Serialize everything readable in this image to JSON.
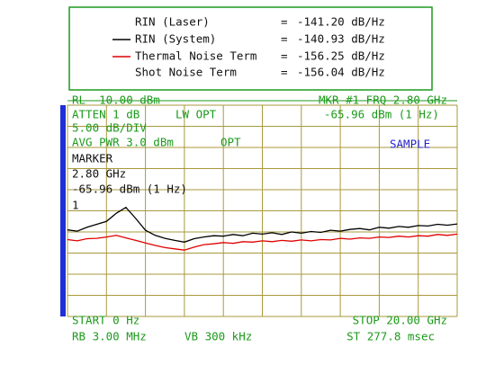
{
  "chart_data": {
    "type": "line",
    "other_terms": [
      {
        "name": "RIN (Laser)",
        "rin": "-141.20 dB/Hz"
      },
      {
        "name": "Shot Noise Term",
        "rin": "-156.04 dB/Hz"
      }
    ],
    "annotations": {
      "rl": "RL -10.00 dBm",
      "mkr": "MKR #1 FRQ 2.80 GHz",
      "atten": "ATTEN 1 dB",
      "lw_opt": "LW OPT",
      "mkr_amp": "-65.96 dBm (1 Hz)",
      "scale": "5.00 dB/DIV",
      "avg": "AVG PWR 3.0 dBm",
      "opt": "OPT",
      "detector": "SAMPLE",
      "marker_title": "MARKER",
      "marker_freq": "2.80 GHz",
      "marker_amp": "-65.96 dBm (1 Hz)",
      "marker_num": "1",
      "start": "START 0 Hz",
      "stop": "STOP 20.00 GHz",
      "rb": "RB 3.00 MHz",
      "vb": "VB 300 kHz",
      "st": "ST 277.8 msec"
    },
    "x": [
      0,
      0.5,
      1,
      1.5,
      2,
      2.5,
      3,
      3.5,
      4,
      4.5,
      5,
      5.5,
      6,
      6.5,
      7,
      7.5,
      8,
      8.5,
      9,
      9.5,
      10,
      10.5,
      11,
      11.5,
      12,
      12.5,
      13,
      13.5,
      14,
      14.5,
      15,
      15.5,
      16,
      16.5,
      17,
      17.5,
      18,
      18.5,
      19,
      19.5,
      20
    ],
    "series": [
      {
        "name": "RIN (System)",
        "rin": "-140.93 dB/Hz",
        "color": "#000000",
        "values": [
          -39.5,
          -39.8,
          -38.9,
          -38.2,
          -37.5,
          -35.6,
          -34.2,
          -36.8,
          -39.6,
          -40.8,
          -41.5,
          -42.0,
          -42.4,
          -41.6,
          -41.2,
          -40.9,
          -41.0,
          -40.6,
          -40.9,
          -40.3,
          -40.5,
          -40.2,
          -40.6,
          -40.0,
          -40.3,
          -39.9,
          -40.1,
          -39.6,
          -39.8,
          -39.4,
          -39.2,
          -39.5,
          -38.9,
          -39.1,
          -38.7,
          -38.9,
          -38.5,
          -38.6,
          -38.2,
          -38.4,
          -38.1
        ]
      },
      {
        "name": "Thermal Noise Term",
        "rin": "-156.25 dB/Hz",
        "color": "#e00000",
        "values": [
          -41.8,
          -42.1,
          -41.6,
          -41.5,
          -41.2,
          -40.8,
          -41.4,
          -42.0,
          -42.6,
          -43.2,
          -43.7,
          -44.0,
          -44.3,
          -43.6,
          -43.0,
          -42.8,
          -42.5,
          -42.7,
          -42.3,
          -42.4,
          -42.1,
          -42.3,
          -42.0,
          -42.2,
          -41.9,
          -42.1,
          -41.8,
          -41.9,
          -41.5,
          -41.7,
          -41.4,
          -41.5,
          -41.2,
          -41.3,
          -41.0,
          -41.2,
          -40.9,
          -41.0,
          -40.6,
          -40.8,
          -40.5
        ]
      }
    ],
    "xlim": [
      0,
      20
    ],
    "ylim": [
      -60,
      -10
    ],
    "grid": true
  }
}
